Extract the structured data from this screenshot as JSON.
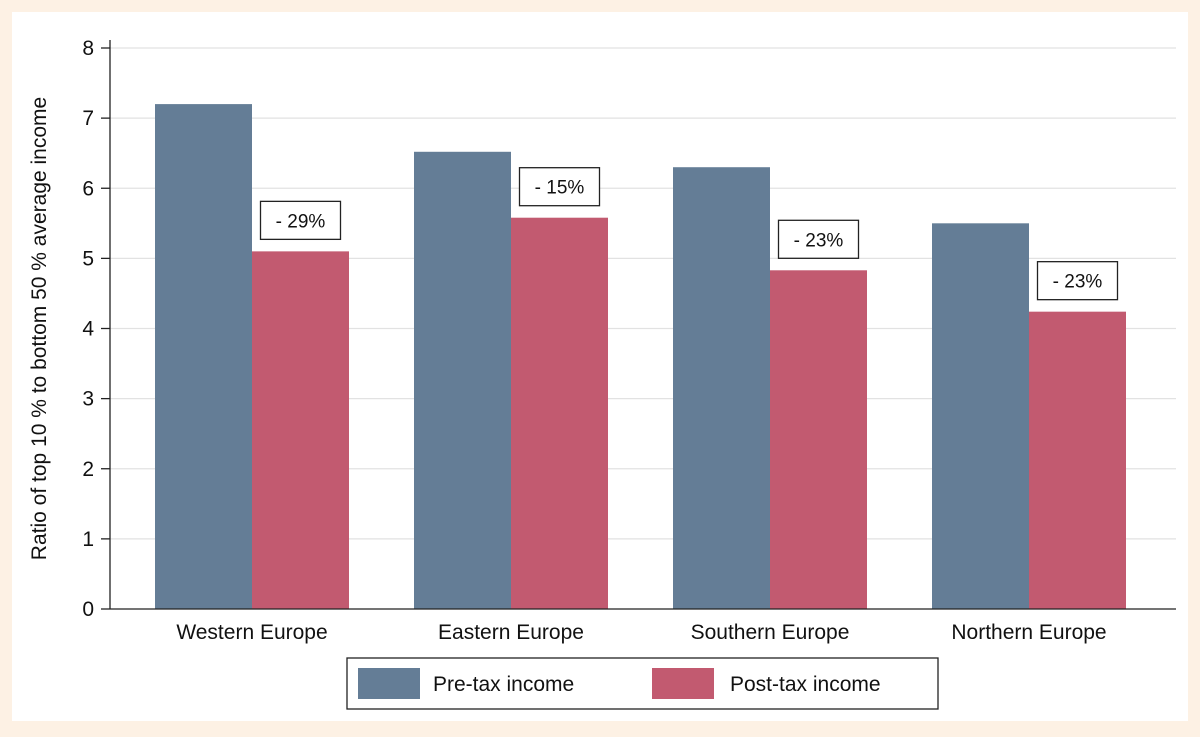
{
  "chart_data": {
    "type": "bar",
    "title": "",
    "xlabel": "",
    "ylabel": "Ratio of top 10 % to bottom 50 % average income",
    "ylim": [
      0,
      8
    ],
    "yticks": [
      "0",
      "1",
      "2",
      "3",
      "4",
      "5",
      "6",
      "7",
      "8"
    ],
    "categories": [
      "Western Europe",
      "Eastern Europe",
      "Southern Europe",
      "Northern Europe"
    ],
    "series": [
      {
        "name": "Pre-tax income",
        "color": "#647d96",
        "values": [
          7.2,
          6.52,
          6.3,
          5.5
        ]
      },
      {
        "name": "Post-tax income",
        "color": "#c25a70",
        "values": [
          5.1,
          5.58,
          4.83,
          4.24
        ]
      }
    ],
    "annotations": [
      "- 29%",
      "- 15%",
      "- 23%",
      "- 23%"
    ],
    "grid": true,
    "legend_position": "bottom"
  }
}
